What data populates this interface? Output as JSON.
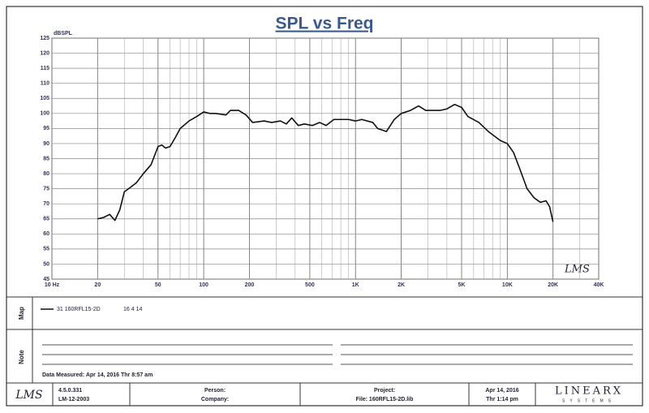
{
  "chart_data": {
    "type": "line",
    "title": "SPL vs Freq",
    "ylabel": "dBSPL",
    "log_x": true,
    "grid": true,
    "xlim": [
      10,
      40000
    ],
    "ylim": [
      45,
      125
    ],
    "xticks": [
      {
        "value": 10,
        "label": "10 Hz"
      },
      20,
      50,
      100,
      200,
      500,
      {
        "value": 1000,
        "label": "1K"
      },
      {
        "value": 2000,
        "label": "2K"
      },
      {
        "value": 5000,
        "label": "5K"
      },
      {
        "value": 10000,
        "label": "10K"
      },
      {
        "value": 20000,
        "label": "20K"
      },
      {
        "value": 40000,
        "label": "40K"
      }
    ],
    "x_minor_ticks": [
      30,
      40,
      60,
      70,
      80,
      90,
      300,
      400,
      600,
      700,
      800,
      900,
      3000,
      4000,
      6000,
      7000,
      8000,
      9000,
      30000
    ],
    "yticks": [
      45,
      50,
      55,
      60,
      65,
      70,
      75,
      80,
      85,
      90,
      95,
      100,
      105,
      110,
      115,
      120,
      125
    ],
    "x": [
      20,
      22,
      24,
      26,
      28,
      30,
      33,
      36,
      40,
      45,
      50,
      53,
      56,
      60,
      65,
      70,
      80,
      90,
      100,
      110,
      120,
      140,
      150,
      170,
      190,
      210,
      250,
      280,
      320,
      350,
      380,
      420,
      460,
      520,
      580,
      640,
      720,
      800,
      900,
      1000,
      1100,
      1300,
      1400,
      1600,
      1800,
      2000,
      2300,
      2600,
      2900,
      3200,
      3600,
      4000,
      4500,
      5000,
      5500,
      6500,
      7500,
      9000,
      10000,
      11000,
      12000,
      13500,
      15000,
      16500,
      18000,
      19000,
      20000
    ],
    "series": [
      {
        "name": "31  160RFL15-2D",
        "color": "#111111",
        "values": [
          65,
          65.5,
          66.5,
          64.5,
          68,
          74,
          75.5,
          77,
          80,
          83,
          89,
          89.5,
          88.5,
          89,
          92,
          95,
          97.5,
          99,
          100.5,
          100,
          100,
          99.5,
          101,
          101,
          99.5,
          97,
          97.5,
          97,
          97.5,
          96.5,
          98.5,
          96,
          96.5,
          96,
          97,
          96,
          98,
          98,
          98,
          97.5,
          98,
          97,
          95,
          94,
          98,
          100,
          101,
          102.5,
          101,
          101,
          101,
          101.5,
          103,
          102,
          99,
          97,
          94,
          91,
          90,
          87,
          82,
          75,
          72,
          70.5,
          71,
          69,
          64
        ]
      }
    ],
    "watermark": "LMS"
  },
  "panel": {
    "legend_date": "16 4 14",
    "map_label": "Map",
    "note_label": "Note",
    "note_text": "Data Measured: Apr 14, 2016  Thr  8:57 am",
    "footer": {
      "logo": "LMS",
      "version": "4.5.0.331",
      "code": "LM-12-2003",
      "person": "Person:",
      "company": "Company:",
      "project": "Project:",
      "file": "File: 160RFL15-2D.lib",
      "date": "Apr 14, 2016",
      "time": "Thr  1:14 pm",
      "brand": "LINEARX",
      "brand_sub": "SYSTEMS"
    }
  }
}
